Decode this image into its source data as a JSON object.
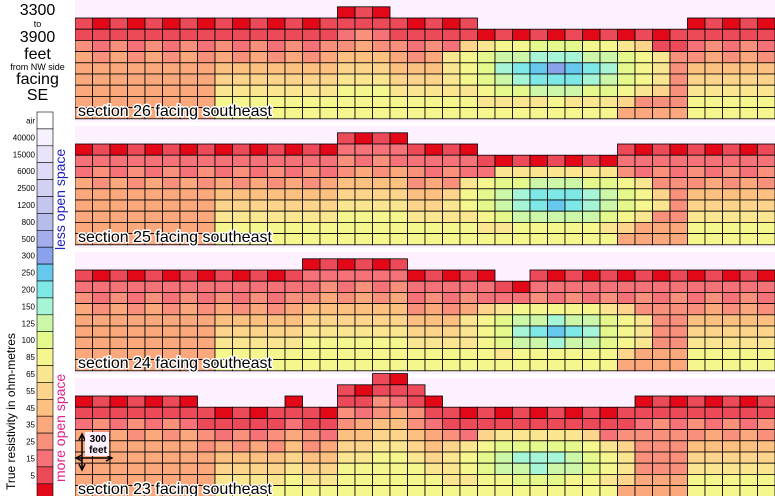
{
  "header": {
    "range_start": "3300",
    "to_word": "to",
    "range_end": "3900",
    "unit": "feet",
    "from_text": "from NW side",
    "facing_word": "facing",
    "direction": "SE"
  },
  "legend": {
    "axis_title": "True resistivity in ohm-metres",
    "less_label": "less open space",
    "more_label": "more open space",
    "less_color": "#2020c0",
    "more_color": "#e0208c",
    "entries": [
      {
        "label": "air",
        "color": "#ffffff"
      },
      {
        "label": "40000",
        "color": "#f6f0ff"
      },
      {
        "label": "15000",
        "color": "#eae4fb"
      },
      {
        "label": "6000",
        "color": "#dedaf7"
      },
      {
        "label": "2500",
        "color": "#d2d0f3"
      },
      {
        "label": "1200",
        "color": "#c4c6ef"
      },
      {
        "label": "800",
        "color": "#b6bcec"
      },
      {
        "label": "500",
        "color": "#a4aeea"
      },
      {
        "label": "300",
        "color": "#8aa2ec"
      },
      {
        "label": "250",
        "color": "#66c8ec"
      },
      {
        "label": "200",
        "color": "#7ee8e6"
      },
      {
        "label": "150",
        "color": "#a6f5d6"
      },
      {
        "label": "125",
        "color": "#ccf7a8"
      },
      {
        "label": "100",
        "color": "#e4f88c"
      },
      {
        "label": "85",
        "color": "#f6f68e"
      },
      {
        "label": "65",
        "color": "#fae690"
      },
      {
        "label": "55",
        "color": "#fcd48c"
      },
      {
        "label": "45",
        "color": "#fcc080"
      },
      {
        "label": "35",
        "color": "#fba87c"
      },
      {
        "label": "25",
        "color": "#f8907c"
      },
      {
        "label": "15",
        "color": "#f47278"
      },
      {
        "label": "5",
        "color": "#ec4a58"
      },
      {
        "label": "",
        "color": "#e20818"
      }
    ]
  },
  "scale_bar": {
    "value": "300",
    "unit": "feet"
  },
  "colors": {
    "background": "#fdf0ff",
    "grid": "#000000"
  },
  "chart_data": {
    "type": "heatmap",
    "columns": 40,
    "value_unit": "ohm-metres",
    "sections": [
      {
        "label": "section 26  facing southeast",
        "rows": 9,
        "bottom_depth_rows": [
          0,
          0,
          0,
          0,
          0,
          0,
          0,
          0,
          0,
          0,
          0,
          0,
          0,
          0,
          0,
          0,
          0,
          0,
          0,
          0,
          0,
          0,
          0,
          0,
          0,
          0,
          0,
          0,
          0,
          0,
          0,
          0,
          0,
          0,
          0,
          0,
          0,
          0,
          0,
          0
        ],
        "surface_top_rows": [
          0,
          0,
          0,
          0,
          0,
          0,
          0,
          0,
          0,
          0,
          0,
          0,
          0,
          0,
          0,
          -1,
          -1,
          -1,
          0,
          0,
          0,
          0,
          0,
          1,
          1,
          1,
          1,
          1,
          1,
          1,
          1,
          1,
          1,
          1,
          1,
          0,
          0,
          0,
          0,
          0
        ],
        "low_zone": {
          "center_col": 27,
          "center_row": 4.2,
          "radius_cols": 7,
          "radius_rows": 3.5,
          "min_class": 8
        }
      },
      {
        "label": "section 25  facing southeast",
        "rows": 9,
        "surface_top_rows": [
          0,
          0,
          0,
          0,
          0,
          0,
          0,
          0,
          0,
          0,
          0,
          0,
          0,
          0,
          0,
          -1,
          -1,
          -1,
          -1,
          0,
          0,
          0,
          0,
          1,
          1,
          1,
          1,
          1,
          1,
          1,
          1,
          0,
          0,
          0,
          0,
          0,
          0,
          0,
          0,
          0
        ],
        "low_zone": {
          "center_col": 27,
          "center_row": 4.6,
          "radius_cols": 6.5,
          "radius_rows": 3.2,
          "min_class": 8
        }
      },
      {
        "label": "section 24  facing southeast",
        "rows": 9,
        "surface_top_rows": [
          0,
          0,
          0,
          0,
          0,
          0,
          0,
          0,
          0,
          0,
          0,
          0,
          0,
          -1,
          -1,
          -1,
          -1,
          -1,
          -1,
          0,
          0,
          0,
          0,
          0,
          1,
          1,
          0,
          0,
          0,
          0,
          0,
          0,
          0,
          0,
          0,
          0,
          0,
          0,
          0,
          0
        ],
        "low_zone": {
          "center_col": 27,
          "center_row": 5.0,
          "radius_cols": 6.0,
          "radius_rows": 3.0,
          "min_class": 9
        }
      },
      {
        "label": "section 23  facing southeast",
        "rows": 9,
        "surface_top_rows": [
          0,
          0,
          0,
          0,
          0,
          0,
          0,
          1,
          1,
          1,
          1,
          1,
          0,
          1,
          1,
          -1,
          -1,
          -2,
          -2,
          -1,
          0,
          1,
          1,
          1,
          1,
          1,
          1,
          1,
          1,
          1,
          1,
          1,
          0,
          0,
          0,
          0,
          0,
          0,
          0,
          0
        ],
        "low_zone": {
          "center_col": 26,
          "center_row": 5.4,
          "radius_cols": 6.0,
          "radius_rows": 3.0,
          "min_class": 10
        }
      }
    ]
  }
}
